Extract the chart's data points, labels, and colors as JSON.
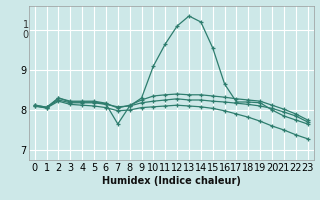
{
  "xlabel": "Humidex (Indice chaleur)",
  "ylabel": "",
  "bg_color": "#cde8e8",
  "grid_color": "#ffffff",
  "line_color": "#2e7d6e",
  "xlim": [
    -0.5,
    23.5
  ],
  "ylim": [
    6.75,
    10.6
  ],
  "yticks": [
    7,
    8,
    9,
    10
  ],
  "ytick_labels": [
    "7",
    "8",
    "9",
    "1\n0"
  ],
  "xticks": [
    0,
    1,
    2,
    3,
    4,
    5,
    6,
    7,
    8,
    9,
    10,
    11,
    12,
    13,
    14,
    15,
    16,
    17,
    18,
    19,
    20,
    21,
    22,
    23
  ],
  "series": [
    {
      "x": [
        0,
        1,
        2,
        3,
        4,
        5,
        6,
        7,
        8,
        9,
        10,
        11,
        12,
        13,
        14,
        15,
        16,
        17,
        18,
        19,
        20,
        21,
        22,
        23
      ],
      "y": [
        8.1,
        8.05,
        8.3,
        8.2,
        8.2,
        8.2,
        8.15,
        7.65,
        8.1,
        8.3,
        9.1,
        9.65,
        10.1,
        10.35,
        10.2,
        9.55,
        8.65,
        8.2,
        8.2,
        8.18,
        8.0,
        7.85,
        7.75,
        7.65
      ]
    },
    {
      "x": [
        0,
        1,
        2,
        3,
        4,
        5,
        6,
        7,
        8,
        9,
        10,
        11,
        12,
        13,
        14,
        15,
        16,
        17,
        18,
        19,
        20,
        21,
        22,
        23
      ],
      "y": [
        8.12,
        8.07,
        8.3,
        8.22,
        8.22,
        8.22,
        8.17,
        8.05,
        8.12,
        8.25,
        8.35,
        8.38,
        8.4,
        8.38,
        8.38,
        8.35,
        8.32,
        8.28,
        8.25,
        8.22,
        8.12,
        8.02,
        7.9,
        7.75
      ]
    },
    {
      "x": [
        0,
        1,
        2,
        3,
        4,
        5,
        6,
        7,
        8,
        9,
        10,
        11,
        12,
        13,
        14,
        15,
        16,
        17,
        18,
        19,
        20,
        21,
        22,
        23
      ],
      "y": [
        8.12,
        8.07,
        8.25,
        8.18,
        8.18,
        8.18,
        8.14,
        8.08,
        8.1,
        8.18,
        8.22,
        8.25,
        8.28,
        8.25,
        8.25,
        8.22,
        8.2,
        8.17,
        8.14,
        8.1,
        8.04,
        7.95,
        7.85,
        7.7
      ]
    },
    {
      "x": [
        0,
        1,
        2,
        3,
        4,
        5,
        6,
        7,
        8,
        9,
        10,
        11,
        12,
        13,
        14,
        15,
        16,
        17,
        18,
        19,
        20,
        21,
        22,
        23
      ],
      "y": [
        8.1,
        8.05,
        8.22,
        8.14,
        8.12,
        8.1,
        8.06,
        7.98,
        8.0,
        8.06,
        8.08,
        8.1,
        8.12,
        8.1,
        8.08,
        8.04,
        7.98,
        7.9,
        7.82,
        7.72,
        7.6,
        7.5,
        7.38,
        7.28
      ]
    }
  ]
}
